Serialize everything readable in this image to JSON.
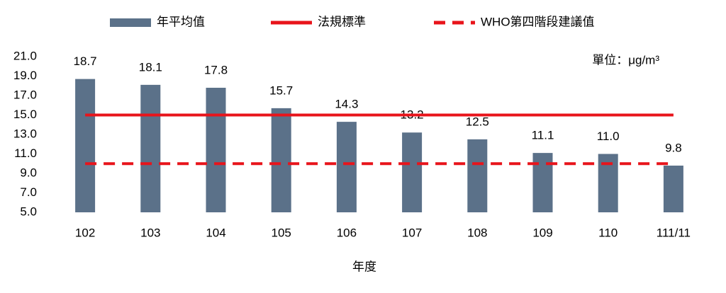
{
  "chart_data": {
    "type": "bar",
    "categories": [
      "102",
      "103",
      "104",
      "105",
      "106",
      "107",
      "108",
      "109",
      "110",
      "111/11"
    ],
    "series": [
      {
        "name": "年平均值",
        "type": "bar",
        "color": "#5b7189",
        "values": [
          18.7,
          18.1,
          17.8,
          15.7,
          14.3,
          13.2,
          12.5,
          11.1,
          11.0,
          9.8
        ],
        "value_labels": [
          "18.7",
          "18.1",
          "17.8",
          "15.7",
          "14.3",
          "13.2",
          "12.5",
          "11.1",
          "11.0",
          "9.8"
        ]
      },
      {
        "name": "法規標準",
        "type": "line",
        "color": "#e8141b",
        "dashed": false,
        "values": [
          15,
          15,
          15,
          15,
          15,
          15,
          15,
          15,
          15,
          15
        ]
      },
      {
        "name": "WHO第四階段建議值",
        "type": "line",
        "color": "#e8141b",
        "dashed": true,
        "values": [
          10,
          10,
          10,
          10,
          10,
          10,
          10,
          10,
          10,
          10
        ]
      }
    ],
    "ylim": [
      5,
      21
    ],
    "yticks": [
      {
        "value": 5,
        "label": "5.0"
      },
      {
        "value": 7,
        "label": "7.0"
      },
      {
        "value": 9,
        "label": "9.0"
      },
      {
        "value": 11,
        "label": "11.0"
      },
      {
        "value": 13,
        "label": "13.0"
      },
      {
        "value": 15,
        "label": "15.0"
      },
      {
        "value": 17,
        "label": "17.0"
      },
      {
        "value": 19,
        "label": "19.0"
      },
      {
        "value": 21,
        "label": "21.0"
      }
    ],
    "xlabel": "年度",
    "unit": "單位：μg/m³",
    "legend": "top"
  }
}
